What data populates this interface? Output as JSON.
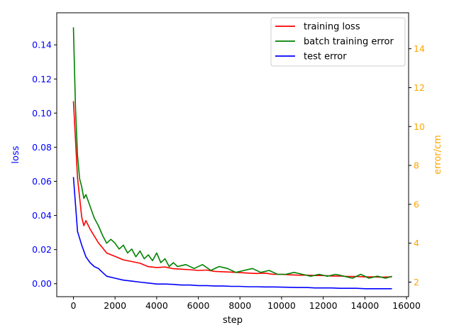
{
  "chart_data": {
    "type": "line",
    "xlabel": "step",
    "ylabel_left": "loss",
    "ylabel_right": "error/cm",
    "xlim": [
      -800,
      16100
    ],
    "ylim_left": [
      -0.0076,
      0.1588
    ],
    "ylim_right": [
      1.25,
      15.85
    ],
    "x_ticks": [
      0,
      2000,
      4000,
      6000,
      8000,
      10000,
      12000,
      14000,
      16000
    ],
    "y_left_ticks": [
      0.0,
      0.02,
      0.04,
      0.06,
      0.08,
      0.1,
      0.12,
      0.14
    ],
    "y_left_tick_labels": [
      "0.00",
      "0.02",
      "0.04",
      "0.06",
      "0.08",
      "0.10",
      "0.12",
      "0.14"
    ],
    "y_right_ticks": [
      2,
      4,
      6,
      8,
      10,
      12,
      14
    ],
    "colors": {
      "left_axis": "#0000ff",
      "right_axis": "#ffa500",
      "training_loss": "#ff0000",
      "batch_training_error": "#008000",
      "test_error": "#0000ff"
    },
    "legend": {
      "position": "top-right",
      "entries": [
        "training loss",
        "batch training error",
        "test error"
      ]
    },
    "series": [
      {
        "name": "training loss",
        "axis": "left",
        "x": [
          0,
          200,
          400,
          500,
          600,
          800,
          1000,
          1200,
          1400,
          1600,
          2000,
          2400,
          2800,
          3200,
          3600,
          4000,
          4400,
          4800,
          5200,
          5600,
          6000,
          6400,
          6800,
          7200,
          7600,
          8000,
          8400,
          8800,
          9200,
          9600,
          10000,
          10400,
          10800,
          11200,
          11600,
          12000,
          12400,
          12800,
          13200,
          13600,
          14000,
          14400,
          14800,
          15300
        ],
        "values": [
          0.107,
          0.062,
          0.039,
          0.034,
          0.037,
          0.032,
          0.028,
          0.024,
          0.021,
          0.018,
          0.016,
          0.014,
          0.013,
          0.012,
          0.01,
          0.0095,
          0.0098,
          0.0088,
          0.0085,
          0.0082,
          0.0078,
          0.008,
          0.0072,
          0.007,
          0.0068,
          0.0065,
          0.0062,
          0.006,
          0.0062,
          0.0055,
          0.0055,
          0.0052,
          0.005,
          0.005,
          0.0048,
          0.0048,
          0.0045,
          0.0045,
          0.0042,
          0.0042,
          0.004,
          0.004,
          0.0038,
          0.004
        ]
      },
      {
        "name": "batch training error",
        "axis": "right",
        "x": [
          0,
          100,
          200,
          300,
          400,
          500,
          600,
          800,
          1000,
          1200,
          1400,
          1600,
          1800,
          2000,
          2200,
          2400,
          2600,
          2800,
          3000,
          3200,
          3400,
          3600,
          3800,
          4000,
          4200,
          4400,
          4600,
          4800,
          5000,
          5400,
          5800,
          6200,
          6600,
          7000,
          7400,
          7800,
          8200,
          8600,
          9000,
          9400,
          9800,
          10200,
          10600,
          11000,
          11400,
          11800,
          12200,
          12600,
          13000,
          13400,
          13800,
          14200,
          14600,
          15000,
          15300
        ],
        "values": [
          15.1,
          11.0,
          8.5,
          7.3,
          6.9,
          6.3,
          6.5,
          5.9,
          5.3,
          4.9,
          4.4,
          4.0,
          4.2,
          4.0,
          3.7,
          3.9,
          3.5,
          3.7,
          3.3,
          3.6,
          3.2,
          3.4,
          3.1,
          3.5,
          3.0,
          3.2,
          2.8,
          3.0,
          2.8,
          2.9,
          2.7,
          2.9,
          2.6,
          2.8,
          2.7,
          2.5,
          2.6,
          2.7,
          2.5,
          2.6,
          2.4,
          2.4,
          2.5,
          2.4,
          2.3,
          2.4,
          2.3,
          2.4,
          2.3,
          2.2,
          2.4,
          2.2,
          2.3,
          2.2,
          2.3
        ]
      },
      {
        "name": "test error",
        "axis": "right",
        "x": [
          0,
          200,
          400,
          600,
          800,
          1000,
          1200,
          1400,
          1600,
          2000,
          2400,
          2800,
          3200,
          3600,
          4000,
          4400,
          4800,
          5200,
          5600,
          6000,
          6400,
          6800,
          7200,
          7600,
          8000,
          8400,
          8800,
          9200,
          9600,
          10000,
          10400,
          10800,
          11200,
          11600,
          12000,
          12400,
          12800,
          13200,
          13600,
          14000,
          14400,
          14800,
          15300
        ],
        "values": [
          7.4,
          4.6,
          3.9,
          3.3,
          3.0,
          2.8,
          2.7,
          2.5,
          2.3,
          2.2,
          2.1,
          2.05,
          2.0,
          1.95,
          1.9,
          1.9,
          1.88,
          1.85,
          1.85,
          1.82,
          1.82,
          1.8,
          1.8,
          1.78,
          1.78,
          1.76,
          1.76,
          1.75,
          1.75,
          1.74,
          1.73,
          1.72,
          1.72,
          1.7,
          1.7,
          1.7,
          1.68,
          1.68,
          1.68,
          1.66,
          1.66,
          1.66,
          1.66
        ]
      }
    ]
  }
}
